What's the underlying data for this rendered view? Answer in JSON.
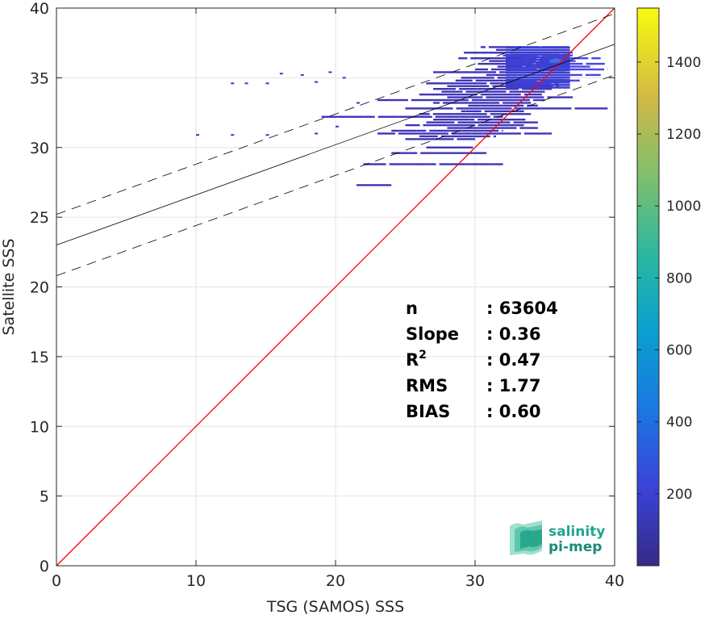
{
  "chart_data": {
    "type": "heatmap",
    "title": "",
    "xlabel": "TSG (SAMOS) SSS",
    "ylabel": "Satellite SSS",
    "xlim": [
      0,
      40
    ],
    "ylim": [
      0,
      40
    ],
    "x_ticks": [
      "0",
      "10",
      "20",
      "30",
      "40"
    ],
    "y_ticks": [
      "0",
      "5",
      "10",
      "15",
      "20",
      "25",
      "30",
      "35",
      "40"
    ],
    "grid": true,
    "colormap": "parula",
    "colorbar": {
      "range": [
        0,
        1550
      ],
      "ticks": [
        "200",
        "400",
        "600",
        "800",
        "1000",
        "1200",
        "1400"
      ]
    },
    "reference_line": {
      "name": "1:1",
      "color": "#ff0000",
      "from": [
        0,
        0
      ],
      "to": [
        40,
        40
      ]
    },
    "regression_line": {
      "intercept": 23.0,
      "slope": 0.36,
      "color": "#000000"
    },
    "confidence_lines": {
      "offset": 2.2,
      "style": "dashed",
      "color": "#000000"
    },
    "density_rows": [
      {
        "y": 37.2,
        "x0": 30.4,
        "x1": 36.7
      },
      {
        "y": 37.0,
        "x0": 31.5,
        "x1": 36.8
      },
      {
        "y": 36.8,
        "x0": 29.2,
        "x1": 37.0
      },
      {
        "y": 36.6,
        "x0": 32.0,
        "x1": 37.0
      },
      {
        "y": 36.4,
        "x0": 28.8,
        "x1": 39.0
      },
      {
        "y": 36.2,
        "x0": 31.0,
        "x1": 37.2
      },
      {
        "y": 36.0,
        "x0": 30.2,
        "x1": 39.3
      },
      {
        "y": 35.8,
        "x0": 31.6,
        "x1": 38.5
      },
      {
        "y": 35.6,
        "x0": 30.0,
        "x1": 39.5
      },
      {
        "y": 35.4,
        "x0": 27.0,
        "x1": 36.5
      },
      {
        "y": 35.2,
        "x0": 30.8,
        "x1": 39.0
      },
      {
        "y": 35.0,
        "x0": 29.0,
        "x1": 36.4
      },
      {
        "y": 34.8,
        "x0": 28.6,
        "x1": 37.5
      },
      {
        "y": 34.6,
        "x0": 26.5,
        "x1": 36.0
      },
      {
        "y": 34.4,
        "x0": 28.0,
        "x1": 36.0
      },
      {
        "y": 34.2,
        "x0": 27.0,
        "x1": 35.5
      },
      {
        "y": 34.0,
        "x0": 27.6,
        "x1": 35.0
      },
      {
        "y": 33.8,
        "x0": 26.0,
        "x1": 34.8
      },
      {
        "y": 33.6,
        "x0": 28.0,
        "x1": 37.0
      },
      {
        "y": 33.4,
        "x0": 23.0,
        "x1": 35.0
      },
      {
        "y": 33.2,
        "x0": 27.0,
        "x1": 34.0
      },
      {
        "y": 33.0,
        "x0": 29.5,
        "x1": 34.5
      },
      {
        "y": 32.8,
        "x0": 25.0,
        "x1": 39.5
      },
      {
        "y": 32.6,
        "x0": 29.0,
        "x1": 33.5
      },
      {
        "y": 32.4,
        "x0": 26.0,
        "x1": 34.0
      },
      {
        "y": 32.2,
        "x0": 19.0,
        "x1": 32.0
      },
      {
        "y": 32.0,
        "x0": 27.0,
        "x1": 33.6
      },
      {
        "y": 31.8,
        "x0": 26.5,
        "x1": 34.5
      },
      {
        "y": 31.6,
        "x0": 25.0,
        "x1": 33.5
      },
      {
        "y": 31.4,
        "x0": 28.0,
        "x1": 34.5
      },
      {
        "y": 31.2,
        "x0": 24.0,
        "x1": 32.0
      },
      {
        "y": 31.0,
        "x0": 23.0,
        "x1": 35.5
      },
      {
        "y": 30.8,
        "x0": 26.0,
        "x1": 31.5
      },
      {
        "y": 30.6,
        "x0": 25.0,
        "x1": 30.0
      },
      {
        "y": 30.0,
        "x0": 26.5,
        "x1": 30.0
      },
      {
        "y": 29.6,
        "x0": 24.0,
        "x1": 31.0
      },
      {
        "y": 28.8,
        "x0": 22.0,
        "x1": 32.0
      },
      {
        "y": 27.3,
        "x0": 21.5,
        "x1": 24.0
      }
    ],
    "sparse_points": [
      {
        "x": 12.5,
        "y": 34.6
      },
      {
        "x": 13.5,
        "y": 34.6
      },
      {
        "x": 15.0,
        "y": 34.6
      },
      {
        "x": 16.0,
        "y": 35.3
      },
      {
        "x": 17.5,
        "y": 35.2
      },
      {
        "x": 18.5,
        "y": 34.7
      },
      {
        "x": 19.5,
        "y": 35.4
      },
      {
        "x": 20.5,
        "y": 35.0
      },
      {
        "x": 21.5,
        "y": 33.2
      },
      {
        "x": 10.0,
        "y": 30.9
      },
      {
        "x": 12.5,
        "y": 30.9
      },
      {
        "x": 15.0,
        "y": 30.9
      },
      {
        "x": 18.5,
        "y": 31.0
      },
      {
        "x": 20.0,
        "y": 31.5
      }
    ],
    "hotspot": {
      "x": 35.8,
      "y": 36.2,
      "count": 430
    },
    "stats": [
      {
        "label": "n",
        "value": ": 63604",
        "sup": ""
      },
      {
        "label": "Slope",
        "value": ": 0.36",
        "sup": ""
      },
      {
        "label": "R",
        "value": ": 0.47",
        "sup": "2"
      },
      {
        "label": "RMS",
        "value": ": 1.77",
        "sup": ""
      },
      {
        "label": "BIAS",
        "value": ": 0.60",
        "sup": ""
      }
    ]
  },
  "logo": {
    "line1": "salinity",
    "line2": "pi-mep"
  }
}
